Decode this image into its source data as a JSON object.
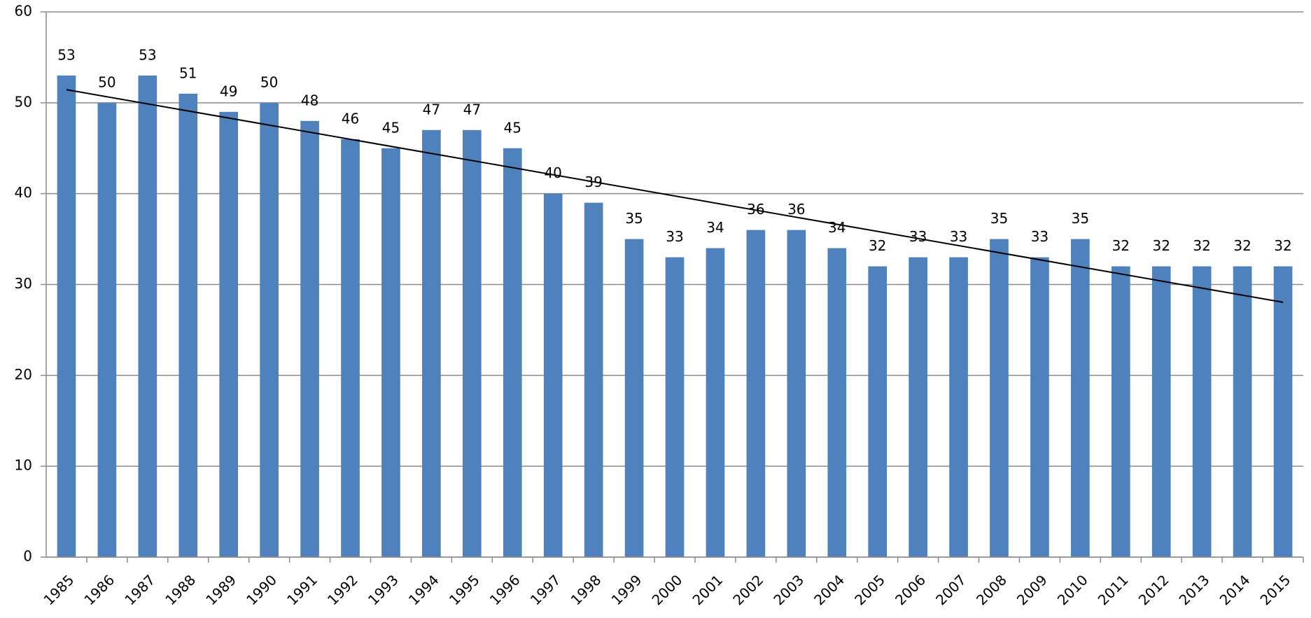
{
  "chart_data": {
    "type": "bar",
    "categories": [
      "1985",
      "1986",
      "1987",
      "1988",
      "1989",
      "1990",
      "1991",
      "1992",
      "1993",
      "1994",
      "1995",
      "1996",
      "1997",
      "1998",
      "1999",
      "2000",
      "2001",
      "2002",
      "2003",
      "2004",
      "2005",
      "2006",
      "2007",
      "2008",
      "2009",
      "2010",
      "2011",
      "2012",
      "2013",
      "2014",
      "2015"
    ],
    "values": [
      53,
      50,
      53,
      51,
      49,
      50,
      48,
      46,
      45,
      47,
      47,
      45,
      40,
      39,
      35,
      33,
      34,
      36,
      36,
      34,
      32,
      33,
      33,
      35,
      33,
      35,
      32,
      32,
      32,
      32,
      32
    ],
    "color": "#4f81bd",
    "ylim": [
      0,
      60
    ],
    "yticks": [
      0,
      10,
      20,
      30,
      40,
      50,
      60
    ],
    "grid": true,
    "trendline": true
  }
}
